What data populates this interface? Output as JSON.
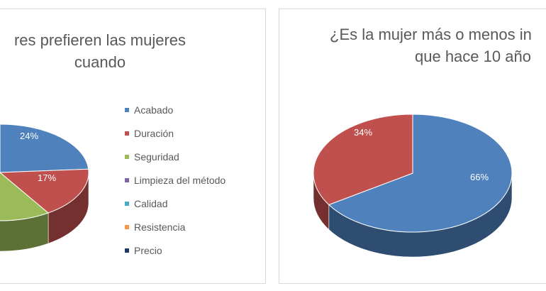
{
  "chart_data": [
    {
      "type": "pie",
      "title_lines": [
        "res prefieren las mujeres",
        "cuando"
      ],
      "legend": [
        "Acabado",
        "Duración",
        "Seguridad",
        "Limpieza del método",
        "Calidad",
        "Resistencia",
        "Precio"
      ],
      "colors": [
        "#4f81bd",
        "#c0504d",
        "#9bbb59",
        "#8064a2",
        "#4bacc6",
        "#f79646",
        "#1f3864"
      ],
      "data_labels": [
        "24%",
        "17%"
      ],
      "legend_position": "right",
      "style": "3d"
    },
    {
      "type": "pie",
      "title_lines": [
        "¿Es la mujer más o menos in",
        "que hace 10 año"
      ],
      "values": [
        66,
        34
      ],
      "data_labels": [
        "66%",
        "34%"
      ],
      "colors": [
        "#4f81bd",
        "#c0504d"
      ],
      "style": "3d"
    }
  ]
}
